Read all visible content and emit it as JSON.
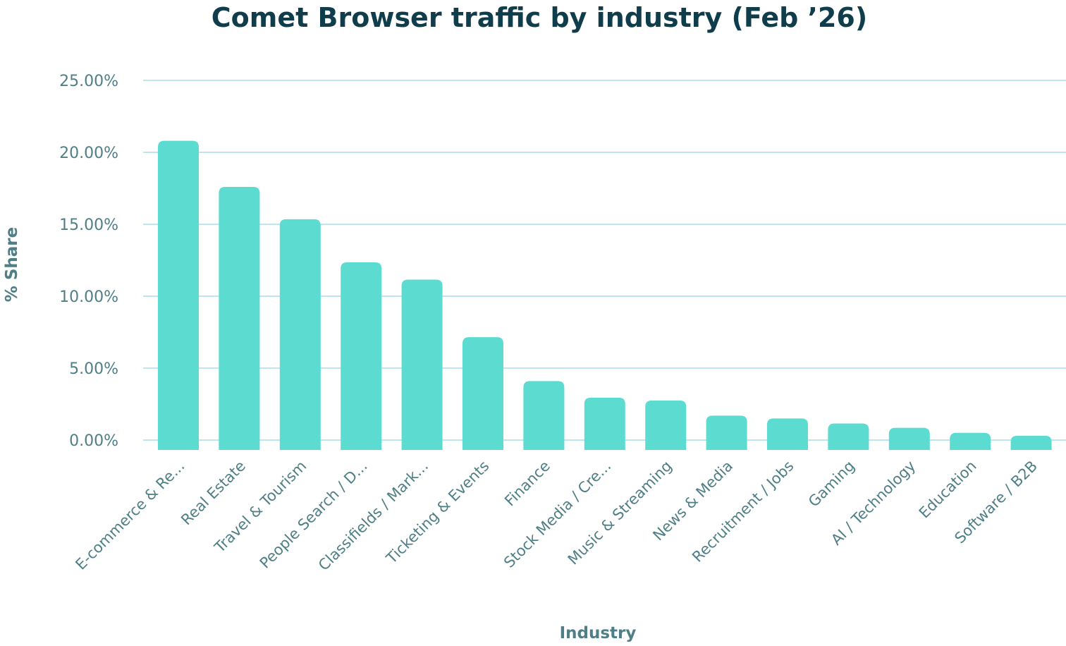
{
  "chart_data": {
    "type": "bar",
    "title": "Comet Browser traffic by industry (Feb ’26)",
    "xlabel": "Industry",
    "ylabel": "% Share",
    "ylim": [
      0,
      25
    ],
    "y_ticks": [
      "0.00%",
      "5.00%",
      "10.00%",
      "15.00%",
      "20.00%",
      "25.00%"
    ],
    "y_tick_values": [
      0,
      5,
      10,
      15,
      20,
      25
    ],
    "grid": true,
    "bar_color": "#5cdbd0",
    "categories": [
      "E-commerce & Re...",
      "Real Estate",
      "Travel & Tourism",
      "People Search / D...",
      "Classifields / Mark...",
      "Ticketing & Events",
      "Finance",
      "Stock Media / Cre...",
      "Music & Streaming",
      "News & Media",
      "Recruitment / Jobs",
      "Gaming",
      "AI / Technology",
      "Education",
      "Software / B2B"
    ],
    "values": [
      20.8,
      17.6,
      15.35,
      12.35,
      11.15,
      7.15,
      4.1,
      2.95,
      2.75,
      1.7,
      1.5,
      1.15,
      0.85,
      0.5,
      0.3
    ]
  }
}
